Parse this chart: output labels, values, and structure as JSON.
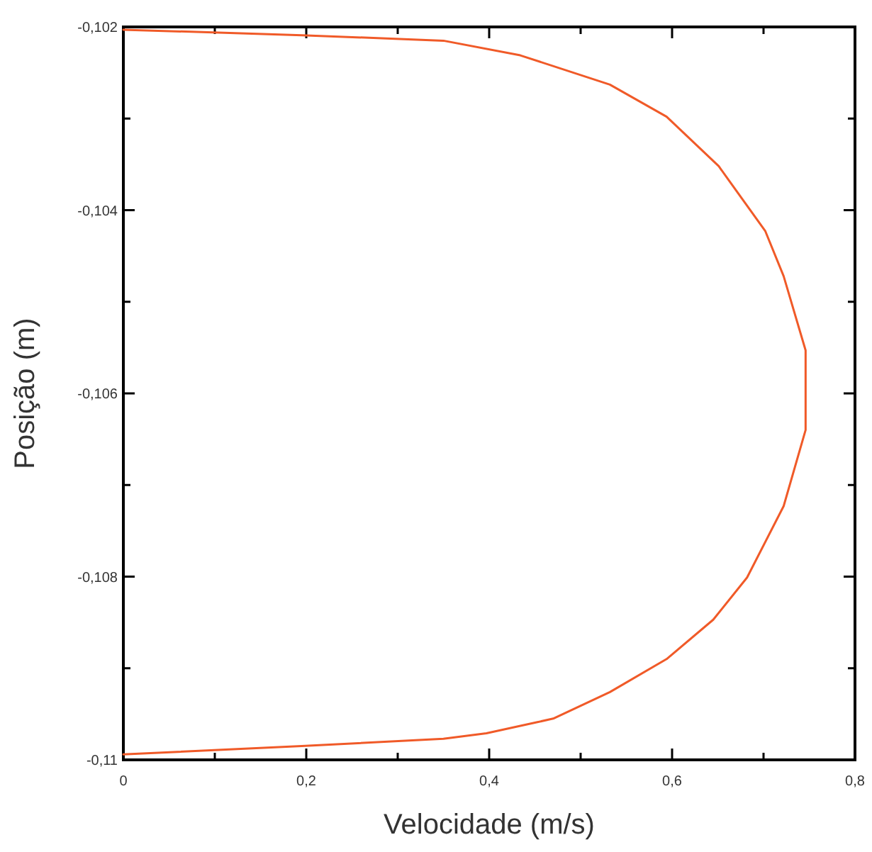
{
  "chart_data": {
    "type": "line",
    "xlabel": "Velocidade (m/s)",
    "ylabel": "Posição (m)",
    "xlim": [
      0,
      0.8
    ],
    "ylim": [
      -0.11,
      -0.102
    ],
    "xticks": [
      0,
      {
        "value": 0.1,
        "label": null
      },
      {
        "value": 0.2,
        "label": "0,2"
      },
      {
        "value": 0.3,
        "label": null
      },
      {
        "value": 0.4,
        "label": "0,4"
      },
      {
        "value": 0.5,
        "label": null
      },
      {
        "value": 0.6,
        "label": "0,6"
      },
      {
        "value": 0.7,
        "label": null
      },
      {
        "value": 0.8,
        "label": "0,8"
      }
    ],
    "yticks": [
      {
        "value": -0.11,
        "label": "-0,11"
      },
      {
        "value": -0.109,
        "label": null
      },
      {
        "value": -0.108,
        "label": "-0,108"
      },
      {
        "value": -0.107,
        "label": null
      },
      {
        "value": -0.106,
        "label": "-0,106"
      },
      {
        "value": -0.105,
        "label": null
      },
      {
        "value": -0.104,
        "label": "-0,104"
      },
      {
        "value": -0.103,
        "label": null
      },
      {
        "value": -0.102,
        "label": "-0,102"
      }
    ],
    "marker": "none",
    "line_style": "solid",
    "series": [
      {
        "color": "#f05a28",
        "x": [
          0,
          0.195,
          0.35,
          0.434,
          0.532,
          0.594,
          0.651,
          0.702,
          0.722,
          0.746,
          0.746,
          0.722,
          0.682,
          0.645,
          0.594,
          0.532,
          0.47,
          0.397,
          0.35,
          0.195,
          0
        ],
        "values": [
          -0.10203,
          -0.10209,
          -0.10215,
          -0.10231,
          -0.10263,
          -0.10298,
          -0.10352,
          -0.10423,
          -0.10472,
          -0.10553,
          -0.1064,
          -0.10723,
          -0.10801,
          -0.10847,
          -0.1089,
          -0.10926,
          -0.10955,
          -0.10971,
          -0.10977,
          -0.10985,
          -0.10994
        ]
      }
    ]
  }
}
